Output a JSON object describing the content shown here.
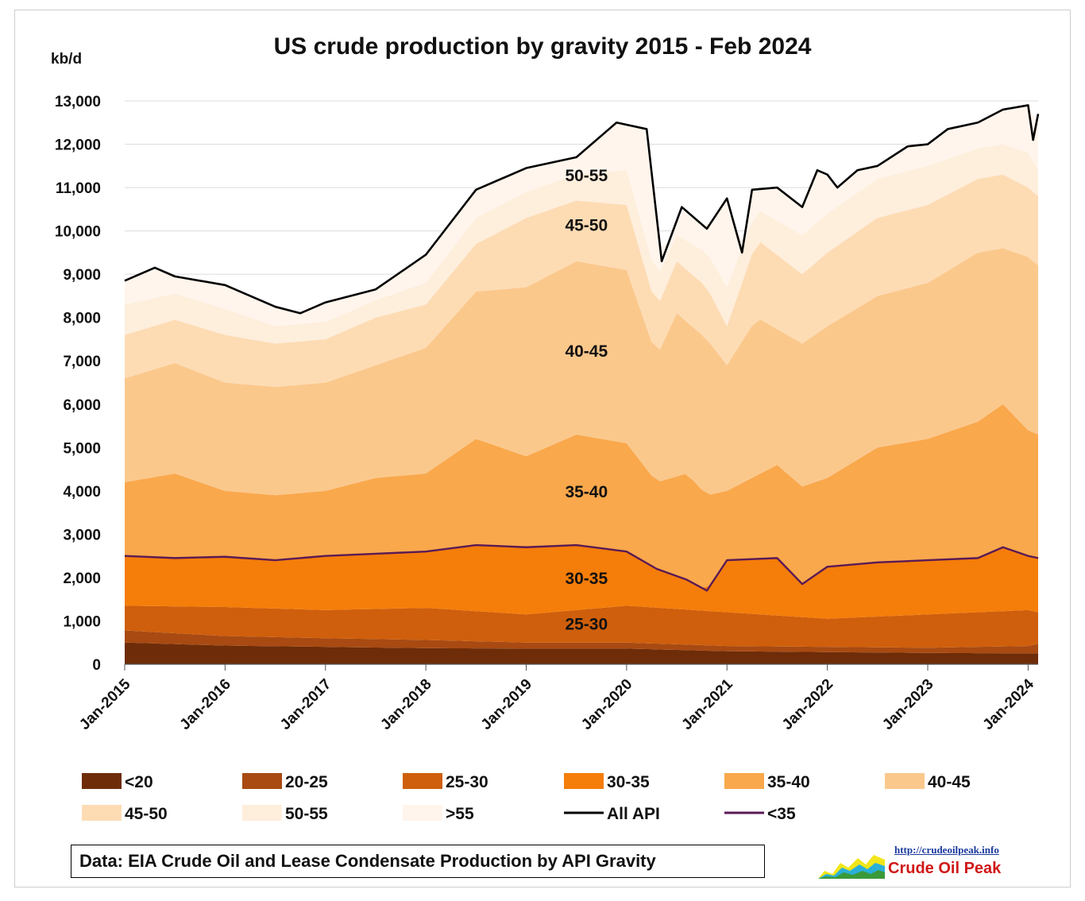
{
  "chart_data": {
    "type": "area",
    "title": "US crude production by gravity 2015 - Feb 2024",
    "ylabel": "kb/d",
    "ylim": [
      0,
      13000
    ],
    "yticks": [
      0,
      1000,
      2000,
      3000,
      4000,
      5000,
      6000,
      7000,
      8000,
      9000,
      10000,
      11000,
      12000,
      13000
    ],
    "ytick_labels": [
      "0",
      "1,000",
      "2,000",
      "3,000",
      "4,000",
      "5,000",
      "6,000",
      "7,000",
      "8,000",
      "9,000",
      "10,000",
      "11,000",
      "12,000",
      "13,000"
    ],
    "x_tick_labels": [
      "Jan-2015",
      "Jan-2016",
      "Jan-2017",
      "Jan-2018",
      "Jan-2019",
      "Jan-2020",
      "Jan-2021",
      "Jan-2022",
      "Jan-2023",
      "Jan-2024"
    ],
    "x_range_years": [
      2015.0,
      2024.1
    ],
    "stack_order": [
      "<20",
      "20-25",
      "25-30",
      "30-35",
      "35-40",
      "40-45",
      "45-50",
      "50-55",
      ">55"
    ],
    "series_colors": {
      "<20": "#6e2c08",
      "20-25": "#a84a12",
      "25-30": "#cf5f0c",
      "30-35": "#f57d0a",
      "35-40": "#f9a84c",
      "40-45": "#fbc88c",
      "45-50": "#fddcb4",
      "50-55": "#feeedc",
      ">55": "#fff5ec",
      "All API": "#000000",
      "<35": "#5a1a55"
    },
    "cumulative_series_kbd": [
      {
        "name": "<20",
        "points": [
          [
            2015.0,
            500
          ],
          [
            2016.0,
            430
          ],
          [
            2017.0,
            400
          ],
          [
            2018.0,
            370
          ],
          [
            2019.0,
            360
          ],
          [
            2020.0,
            360
          ],
          [
            2021.0,
            300
          ],
          [
            2022.0,
            280
          ],
          [
            2023.0,
            260
          ],
          [
            2024.0,
            250
          ],
          [
            2024.1,
            250
          ]
        ]
      },
      {
        "name": "20-25",
        "points": [
          [
            2015.0,
            780
          ],
          [
            2016.0,
            650
          ],
          [
            2017.0,
            600
          ],
          [
            2018.0,
            560
          ],
          [
            2019.0,
            500
          ],
          [
            2020.0,
            500
          ],
          [
            2021.0,
            420
          ],
          [
            2022.0,
            400
          ],
          [
            2023.0,
            380
          ],
          [
            2024.0,
            420
          ],
          [
            2024.1,
            470
          ]
        ]
      },
      {
        "name": "25-30",
        "points": [
          [
            2015.0,
            1350
          ],
          [
            2016.0,
            1320
          ],
          [
            2017.0,
            1250
          ],
          [
            2018.0,
            1300
          ],
          [
            2019.0,
            1150
          ],
          [
            2020.0,
            1350
          ],
          [
            2021.0,
            1200
          ],
          [
            2022.0,
            1050
          ],
          [
            2023.0,
            1150
          ],
          [
            2024.0,
            1250
          ],
          [
            2024.1,
            1200
          ]
        ]
      },
      {
        "name": "30-35",
        "points": [
          [
            2015.0,
            2500
          ],
          [
            2015.5,
            2450
          ],
          [
            2016.0,
            2480
          ],
          [
            2016.5,
            2400
          ],
          [
            2017.0,
            2500
          ],
          [
            2017.5,
            2550
          ],
          [
            2018.0,
            2600
          ],
          [
            2018.5,
            2750
          ],
          [
            2019.0,
            2700
          ],
          [
            2019.5,
            2750
          ],
          [
            2020.0,
            2600
          ],
          [
            2020.3,
            2200
          ],
          [
            2020.6,
            1950
          ],
          [
            2020.8,
            1700
          ],
          [
            2021.0,
            2400
          ],
          [
            2021.5,
            2450
          ],
          [
            2021.75,
            1850
          ],
          [
            2022.0,
            2250
          ],
          [
            2022.5,
            2350
          ],
          [
            2023.0,
            2400
          ],
          [
            2023.5,
            2450
          ],
          [
            2023.75,
            2700
          ],
          [
            2024.0,
            2500
          ],
          [
            2024.1,
            2450
          ]
        ]
      },
      {
        "name": "35-40",
        "points": [
          [
            2015.0,
            4200
          ],
          [
            2015.5,
            4400
          ],
          [
            2016.0,
            4000
          ],
          [
            2016.5,
            3900
          ],
          [
            2017.0,
            4000
          ],
          [
            2017.5,
            4300
          ],
          [
            2018.0,
            4400
          ],
          [
            2018.5,
            5200
          ],
          [
            2019.0,
            4800
          ],
          [
            2019.5,
            5300
          ],
          [
            2020.0,
            5100
          ],
          [
            2020.3,
            4200
          ],
          [
            2020.6,
            4400
          ],
          [
            2020.8,
            3900
          ],
          [
            2021.0,
            4000
          ],
          [
            2021.5,
            4600
          ],
          [
            2021.75,
            4100
          ],
          [
            2022.0,
            4300
          ],
          [
            2022.5,
            5000
          ],
          [
            2023.0,
            5200
          ],
          [
            2023.5,
            5600
          ],
          [
            2023.75,
            6000
          ],
          [
            2024.0,
            5400
          ],
          [
            2024.1,
            5300
          ]
        ]
      },
      {
        "name": "40-45",
        "points": [
          [
            2015.0,
            6600
          ],
          [
            2015.5,
            6950
          ],
          [
            2016.0,
            6500
          ],
          [
            2016.5,
            6400
          ],
          [
            2017.0,
            6500
          ],
          [
            2017.5,
            6900
          ],
          [
            2018.0,
            7300
          ],
          [
            2018.5,
            8600
          ],
          [
            2019.0,
            8700
          ],
          [
            2019.5,
            9300
          ],
          [
            2020.0,
            9100
          ],
          [
            2020.3,
            7100
          ],
          [
            2020.5,
            8100
          ],
          [
            2020.8,
            7500
          ],
          [
            2021.0,
            6900
          ],
          [
            2021.3,
            8000
          ],
          [
            2021.75,
            7400
          ],
          [
            2022.0,
            7800
          ],
          [
            2022.5,
            8500
          ],
          [
            2023.0,
            8800
          ],
          [
            2023.5,
            9500
          ],
          [
            2023.75,
            9600
          ],
          [
            2024.0,
            9400
          ],
          [
            2024.1,
            9200
          ]
        ]
      },
      {
        "name": "45-50",
        "points": [
          [
            2015.0,
            7600
          ],
          [
            2015.5,
            7950
          ],
          [
            2016.0,
            7600
          ],
          [
            2016.5,
            7400
          ],
          [
            2017.0,
            7500
          ],
          [
            2017.5,
            8000
          ],
          [
            2018.0,
            8300
          ],
          [
            2018.5,
            9700
          ],
          [
            2019.0,
            10300
          ],
          [
            2019.5,
            10700
          ],
          [
            2020.0,
            10600
          ],
          [
            2020.3,
            8200
          ],
          [
            2020.5,
            9300
          ],
          [
            2020.8,
            8700
          ],
          [
            2021.0,
            7800
          ],
          [
            2021.3,
            9800
          ],
          [
            2021.75,
            9000
          ],
          [
            2022.0,
            9500
          ],
          [
            2022.5,
            10300
          ],
          [
            2023.0,
            10600
          ],
          [
            2023.5,
            11200
          ],
          [
            2023.75,
            11300
          ],
          [
            2024.0,
            11000
          ],
          [
            2024.1,
            10800
          ]
        ]
      },
      {
        "name": "50-55",
        "points": [
          [
            2015.0,
            8300
          ],
          [
            2015.5,
            8550
          ],
          [
            2016.0,
            8200
          ],
          [
            2016.5,
            7800
          ],
          [
            2017.0,
            7900
          ],
          [
            2017.5,
            8400
          ],
          [
            2018.0,
            8800
          ],
          [
            2018.5,
            10300
          ],
          [
            2019.0,
            10900
          ],
          [
            2019.5,
            11300
          ],
          [
            2020.0,
            11400
          ],
          [
            2020.3,
            8900
          ],
          [
            2020.5,
            9900
          ],
          [
            2020.8,
            9500
          ],
          [
            2021.0,
            8700
          ],
          [
            2021.3,
            10500
          ],
          [
            2021.75,
            9900
          ],
          [
            2022.0,
            10400
          ],
          [
            2022.5,
            11200
          ],
          [
            2023.0,
            11500
          ],
          [
            2023.5,
            11900
          ],
          [
            2023.75,
            12000
          ],
          [
            2024.0,
            11800
          ],
          [
            2024.1,
            11400
          ]
        ]
      },
      {
        "name": ">55",
        "points": [
          [
            2015.0,
            8850
          ],
          [
            2015.3,
            9150
          ],
          [
            2015.5,
            8950
          ],
          [
            2016.0,
            8750
          ],
          [
            2016.5,
            8250
          ],
          [
            2016.75,
            8100
          ],
          [
            2017.0,
            8350
          ],
          [
            2017.5,
            8650
          ],
          [
            2018.0,
            9450
          ],
          [
            2018.5,
            10950
          ],
          [
            2019.0,
            11450
          ],
          [
            2019.5,
            11700
          ],
          [
            2019.9,
            12500
          ],
          [
            2020.2,
            12350
          ],
          [
            2020.35,
            9300
          ],
          [
            2020.55,
            10550
          ],
          [
            2020.8,
            10050
          ],
          [
            2021.0,
            10750
          ],
          [
            2021.15,
            9500
          ],
          [
            2021.25,
            10950
          ],
          [
            2021.5,
            11000
          ],
          [
            2021.75,
            10550
          ],
          [
            2021.9,
            11400
          ],
          [
            2022.0,
            11300
          ],
          [
            2022.1,
            11000
          ],
          [
            2022.3,
            11400
          ],
          [
            2022.5,
            11500
          ],
          [
            2022.8,
            11950
          ],
          [
            2023.0,
            12000
          ],
          [
            2023.2,
            12350
          ],
          [
            2023.5,
            12500
          ],
          [
            2023.75,
            12800
          ],
          [
            2024.0,
            12900
          ],
          [
            2024.05,
            12100
          ],
          [
            2024.1,
            12700
          ]
        ]
      }
    ],
    "lines": [
      {
        "name": "All API",
        "points": [
          [
            2015.0,
            8850
          ],
          [
            2015.3,
            9150
          ],
          [
            2015.5,
            8950
          ],
          [
            2016.0,
            8750
          ],
          [
            2016.5,
            8250
          ],
          [
            2016.75,
            8100
          ],
          [
            2017.0,
            8350
          ],
          [
            2017.5,
            8650
          ],
          [
            2018.0,
            9450
          ],
          [
            2018.5,
            10950
          ],
          [
            2019.0,
            11450
          ],
          [
            2019.5,
            11700
          ],
          [
            2019.9,
            12500
          ],
          [
            2020.2,
            12350
          ],
          [
            2020.35,
            9300
          ],
          [
            2020.55,
            10550
          ],
          [
            2020.8,
            10050
          ],
          [
            2021.0,
            10750
          ],
          [
            2021.15,
            9500
          ],
          [
            2021.25,
            10950
          ],
          [
            2021.5,
            11000
          ],
          [
            2021.75,
            10550
          ],
          [
            2021.9,
            11400
          ],
          [
            2022.0,
            11300
          ],
          [
            2022.1,
            11000
          ],
          [
            2022.3,
            11400
          ],
          [
            2022.5,
            11500
          ],
          [
            2022.8,
            11950
          ],
          [
            2023.0,
            12000
          ],
          [
            2023.2,
            12350
          ],
          [
            2023.5,
            12500
          ],
          [
            2023.75,
            12800
          ],
          [
            2024.0,
            12900
          ],
          [
            2024.05,
            12100
          ],
          [
            2024.1,
            12700
          ]
        ]
      },
      {
        "name": "<35",
        "points": [
          [
            2015.0,
            2500
          ],
          [
            2015.5,
            2450
          ],
          [
            2016.0,
            2480
          ],
          [
            2016.5,
            2400
          ],
          [
            2017.0,
            2500
          ],
          [
            2017.5,
            2550
          ],
          [
            2018.0,
            2600
          ],
          [
            2018.5,
            2750
          ],
          [
            2019.0,
            2700
          ],
          [
            2019.5,
            2750
          ],
          [
            2020.0,
            2600
          ],
          [
            2020.3,
            2200
          ],
          [
            2020.6,
            1950
          ],
          [
            2020.8,
            1700
          ],
          [
            2021.0,
            2400
          ],
          [
            2021.5,
            2450
          ],
          [
            2021.75,
            1850
          ],
          [
            2022.0,
            2250
          ],
          [
            2022.5,
            2350
          ],
          [
            2023.0,
            2400
          ],
          [
            2023.5,
            2450
          ],
          [
            2023.75,
            2700
          ],
          [
            2024.0,
            2500
          ],
          [
            2024.1,
            2450
          ]
        ]
      }
    ],
    "annotations": [
      {
        "text": "50-55",
        "x": 2019.6,
        "y": 11150
      },
      {
        "text": "45-50",
        "x": 2019.6,
        "y": 10000
      },
      {
        "text": "40-45",
        "x": 2019.6,
        "y": 7100
      },
      {
        "text": "35-40",
        "x": 2019.6,
        "y": 3850
      },
      {
        "text": "30-35",
        "x": 2019.6,
        "y": 1850
      },
      {
        "text": "25-30",
        "x": 2019.6,
        "y": 800
      }
    ],
    "legend": {
      "placement": "bottom",
      "items": [
        {
          "label": "<20",
          "kind": "area",
          "key": "<20"
        },
        {
          "label": "20-25",
          "kind": "area",
          "key": "20-25"
        },
        {
          "label": "25-30",
          "kind": "area",
          "key": "25-30"
        },
        {
          "label": "30-35",
          "kind": "area",
          "key": "30-35"
        },
        {
          "label": "35-40",
          "kind": "area",
          "key": "35-40"
        },
        {
          "label": "40-45",
          "kind": "area",
          "key": "40-45"
        },
        {
          "label": "45-50",
          "kind": "area",
          "key": "45-50"
        },
        {
          "label": "50-55",
          "kind": "area",
          "key": "50-55"
        },
        {
          "label": ">55",
          "kind": "area",
          "key": ">55"
        },
        {
          "label": "All API",
          "kind": "line",
          "key": "All API"
        },
        {
          "label": "<35",
          "kind": "line",
          "key": "<35"
        }
      ]
    }
  },
  "source_note": "Data: EIA Crude Oil and Lease Condensate Production by API Gravity",
  "logo": {
    "url_text": "http://crudeoilpeak.info",
    "name": "Crude Oil Peak"
  }
}
